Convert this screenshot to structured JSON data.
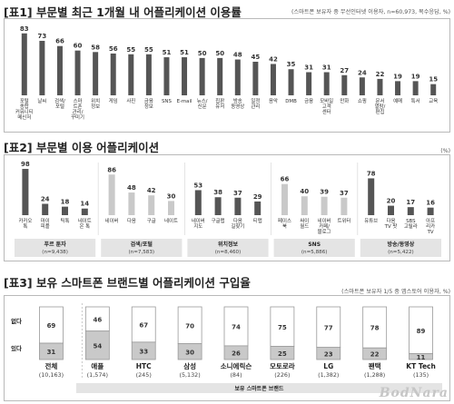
{
  "chart_data": [
    {
      "type": "bar",
      "title": "[표1] 부문별 최근 1개월 내 어플리케이션 이용률",
      "note": "(스마트폰 보유자 중 무선인터넷 이용자, n=60,973, 복수응답, %)",
      "categories": [
        "포털 \n 종합 \n 커뮤니티 \n 메신저",
        "날씨",
        "검색/\n포털",
        "스마\n트폰\n관리/\n꾸미기",
        "위치\n정보",
        "게임",
        "사진",
        "금융\n정보",
        "SNS",
        "E-mail",
        "뉴스/\n신문",
        "칩판 \n유저",
        "방송 \n동영상",
        "일정\n관리",
        "음악",
        "DMB",
        "금융",
        "모바일\n고객\n센터",
        "만화",
        "쇼핑",
        "문서\n열람/\n편집",
        "예매",
        "특서",
        "교육"
      ],
      "values": [
        83,
        73,
        66,
        60,
        58,
        56,
        55,
        55,
        51,
        51,
        50,
        50,
        48,
        45,
        42,
        35,
        31,
        31,
        27,
        24,
        22,
        19,
        19,
        15
      ],
      "ylim": [
        0,
        90
      ]
    },
    {
      "type": "bar",
      "title": "[표2] 부문별 이용 어플리케이션",
      "note": "(%)",
      "groups": [
        {
          "name": "푸르 툰자",
          "n": "(n=9,438)",
          "color": "#555555",
          "categories": [
            "카카오\n톡",
            "마이\n피플",
            "틱톡",
            "네이트\n온 톡"
          ],
          "values": [
            98,
            24,
            18,
            14
          ]
        },
        {
          "name": "검색/포털",
          "n": "(n=7,583)",
          "color": "#c9c9c9",
          "categories": [
            "네이버",
            "다음",
            "구글",
            "네이트"
          ],
          "values": [
            86,
            48,
            42,
            30
          ]
        },
        {
          "name": "위치정보",
          "n": "(n=8,460)",
          "color": "#555555",
          "categories": [
            "네이버\n지도",
            "구글맵",
            "다음\n길찾기",
            "티맵"
          ],
          "values": [
            53,
            38,
            37,
            29
          ]
        },
        {
          "name": "SNS",
          "n": "(n=5,886)",
          "color": "#c9c9c9",
          "categories": [
            "페이스\n북",
            "싸이\n월드",
            "네이버\n카페/\n블로그",
            "트위터"
          ],
          "values": [
            66,
            40,
            39,
            37
          ]
        },
        {
          "name": "방송/동영상",
          "n": "(n=5,422)",
          "color": "#555555",
          "categories": [
            "유튜브",
            "다음\nTV 팟",
            "SBS\n고릴라",
            "아프\n리카\nTV"
          ],
          "values": [
            78,
            20,
            17,
            16
          ]
        }
      ],
      "ylim": [
        0,
        100
      ]
    },
    {
      "type": "bar",
      "title": "[표3] 보유 스마트폰 브랜드별 어플리케이션 구입율",
      "note": "(스마트폰 보유자 1/5 중 앱스토어 이용자, %)",
      "stacked": true,
      "series_labels": [
        "없다",
        "있다"
      ],
      "categories": [
        "전체",
        "애플",
        "HTC",
        "삼성",
        "소니에릭슨",
        "모토로라",
        "LG",
        "팬택",
        "KT Tech"
      ],
      "n": [
        "(10,163)",
        "(1,574)",
        "(245)",
        "(5,132)",
        "(84)",
        "(226)",
        "(1,382)",
        "(1,288)",
        "(135)"
      ],
      "series": [
        {
          "name": "없다",
          "values": [
            69,
            46,
            67,
            70,
            74,
            75,
            77,
            78,
            89
          ]
        },
        {
          "name": "있다",
          "values": [
            31,
            54,
            33,
            30,
            26,
            25,
            23,
            22,
            11
          ]
        }
      ],
      "brand_group_label": "보유 스마트폰 브랜드"
    }
  ],
  "watermark": "BodNara",
  "colors": {
    "dark": "#555555",
    "light": "#c9c9c9",
    "white": "#ffffff"
  }
}
